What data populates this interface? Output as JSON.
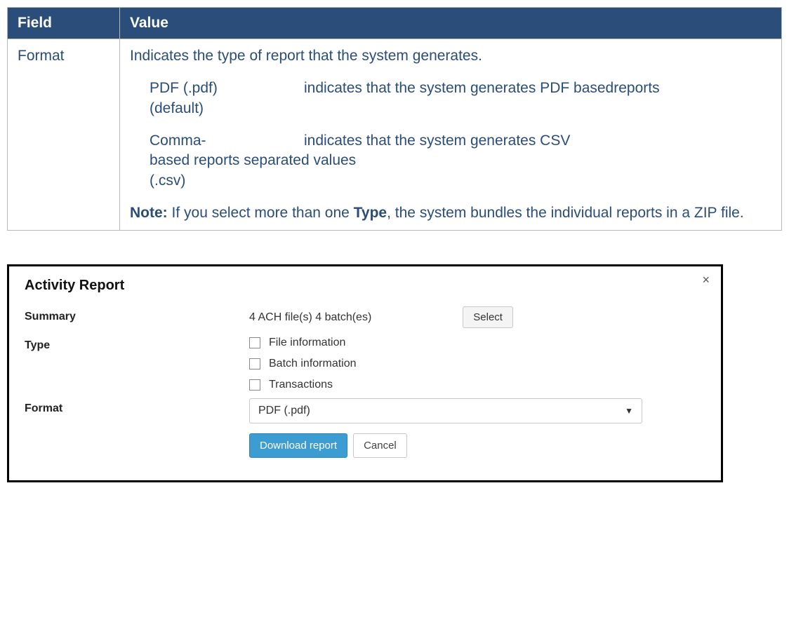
{
  "table": {
    "header": {
      "field": "Field",
      "value": "Value"
    },
    "row": {
      "field": "Format",
      "intro": "Indicates the type of report that the system generates.",
      "opt1_term": "PDF (.pdf)",
      "opt1_desc": "indicates that the system generates PDF basedreports",
      "opt1_line2": "(default)",
      "opt2_term": "Comma-",
      "opt2_desc": "indicates that the system generates CSV",
      "opt2_line2": "based reports separated values",
      "opt2_line3": "(.csv)",
      "note_label": "Note:",
      "note_before": " If you select more than one ",
      "note_bold2": "Type",
      "note_after": ", the system bundles the individual reports in a ZIP file."
    },
    "colors": {
      "header_bg": "#2a4d7a",
      "header_fg": "#ffffff",
      "body_fg": "#2a4d7a",
      "border": "#b8b8b8"
    }
  },
  "dialog": {
    "title": "Activity Report",
    "close_glyph": "×",
    "summary": {
      "label": "Summary",
      "text": "4 ACH file(s) 4 batch(es)",
      "select_btn": "Select"
    },
    "type": {
      "label": "Type",
      "options": [
        "File information",
        "Batch information",
        "Transactions"
      ]
    },
    "format": {
      "label": "Format",
      "selected": "PDF (.pdf)",
      "caret": "▼"
    },
    "buttons": {
      "download": "Download report",
      "cancel": "Cancel"
    },
    "colors": {
      "dialog_border": "#000000",
      "primary_btn_bg": "#3d9cd2",
      "primary_btn_fg": "#ffffff",
      "secondary_btn_bg": "#f4f4f4",
      "secondary_btn_border": "#c8c8c8"
    }
  }
}
